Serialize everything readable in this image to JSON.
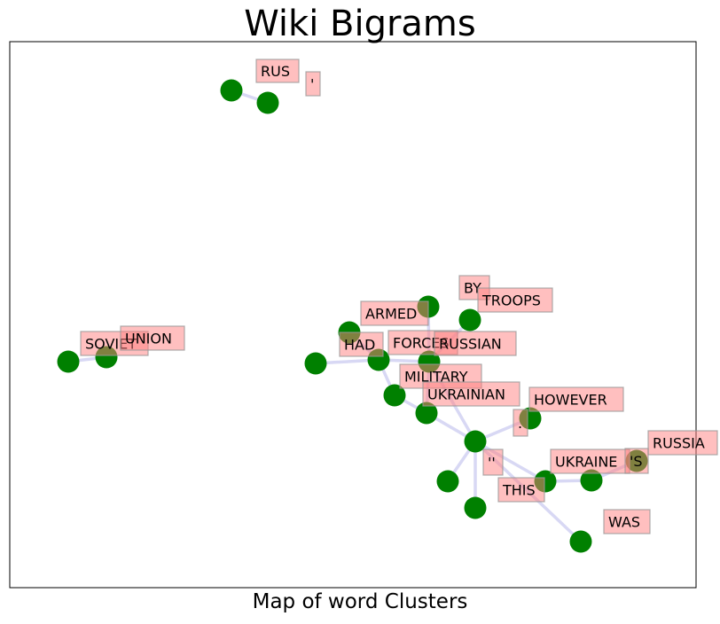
{
  "chart": {
    "title": "Wiki Bigrams",
    "xlabel": "Map of word Clusters"
  },
  "colors": {
    "node": "#008000",
    "edge": "#c8c8f0",
    "label_fill": "#ff8080",
    "label_border": "#999999"
  },
  "nodes": [
    {
      "id": "n_rus_a"
    },
    {
      "id": "n_rus_b"
    },
    {
      "id": "n_soviet"
    },
    {
      "id": "n_union"
    },
    {
      "id": "n_had_a"
    },
    {
      "id": "n_armed"
    },
    {
      "id": "n_had"
    },
    {
      "id": "n_by"
    },
    {
      "id": "n_troops"
    },
    {
      "id": "n_forces"
    },
    {
      "id": "n_military"
    },
    {
      "id": "n_ukrainian"
    },
    {
      "id": "n_hub"
    },
    {
      "id": "n_however"
    },
    {
      "id": "n_quote"
    },
    {
      "id": "n_bottom"
    },
    {
      "id": "n_this"
    },
    {
      "id": "n_ukraine"
    },
    {
      "id": "n_s"
    },
    {
      "id": "n_was"
    }
  ],
  "labels": [
    {
      "id": "l_rus",
      "text": "RUS"
    },
    {
      "id": "l_apos",
      "text": "'"
    },
    {
      "id": "l_soviet",
      "text": "SOVIET"
    },
    {
      "id": "l_union",
      "text": "UNION"
    },
    {
      "id": "l_armed",
      "text": "ARMED"
    },
    {
      "id": "l_had",
      "text": "HAD"
    },
    {
      "id": "l_by",
      "text": "BY"
    },
    {
      "id": "l_troops",
      "text": "TROOPS"
    },
    {
      "id": "l_forces",
      "text": "FORCES"
    },
    {
      "id": "l_russian",
      "text": "RUSSIAN"
    },
    {
      "id": "l_military",
      "text": "MILITARY"
    },
    {
      "id": "l_ukrainian",
      "text": "UKRAINIAN"
    },
    {
      "id": "l_however",
      "text": "HOWEVER"
    },
    {
      "id": "l_dot",
      "text": "."
    },
    {
      "id": "l_russia",
      "text": "RUSSIA"
    },
    {
      "id": "l_quote",
      "text": "''"
    },
    {
      "id": "l_ukraine",
      "text": "UKRAINE"
    },
    {
      "id": "l_s",
      "text": "'S"
    },
    {
      "id": "l_this",
      "text": "THIS"
    },
    {
      "id": "l_was",
      "text": "WAS"
    }
  ],
  "edges": [
    [
      "n_rus_a",
      "n_rus_b"
    ],
    [
      "n_soviet",
      "n_union"
    ],
    [
      "n_had_a",
      "n_had"
    ],
    [
      "n_armed",
      "n_had"
    ],
    [
      "n_had",
      "n_forces"
    ],
    [
      "n_by",
      "n_forces"
    ],
    [
      "n_troops",
      "n_forces"
    ],
    [
      "n_had",
      "n_military"
    ],
    [
      "n_military",
      "n_ukrainian"
    ],
    [
      "n_forces",
      "n_ukrainian"
    ],
    [
      "n_ukrainian",
      "n_hub"
    ],
    [
      "n_forces",
      "n_hub"
    ],
    [
      "n_hub",
      "n_however"
    ],
    [
      "n_hub",
      "n_quote"
    ],
    [
      "n_hub",
      "n_bottom"
    ],
    [
      "n_hub",
      "n_this"
    ],
    [
      "n_hub",
      "n_was"
    ],
    [
      "n_this",
      "n_ukraine"
    ],
    [
      "n_ukraine",
      "n_s"
    ]
  ]
}
